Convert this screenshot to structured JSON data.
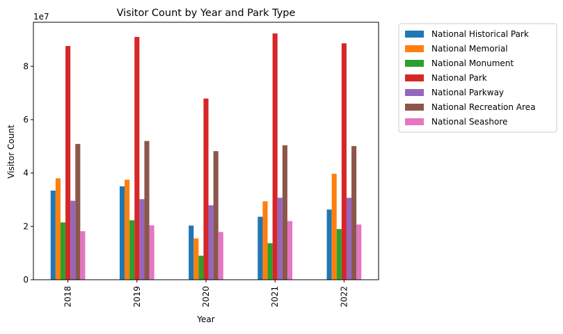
{
  "chart_data": {
    "type": "bar",
    "title": "Visitor Count by Year and Park Type",
    "xlabel": "Year",
    "ylabel": "Visitor Count",
    "y_offset_label": "1e7",
    "categories": [
      "2018",
      "2019",
      "2020",
      "2021",
      "2022"
    ],
    "ylim": [
      0,
      96500000
    ],
    "y_ticks": [
      0,
      20000000,
      40000000,
      60000000,
      80000000
    ],
    "y_tick_labels": [
      "0",
      "2",
      "4",
      "6",
      "8"
    ],
    "grid": false,
    "legend_position": "outside-top-right",
    "series": [
      {
        "name": "National Historical Park",
        "color": "#1f77b4",
        "values": [
          33400000,
          35000000,
          20300000,
          23600000,
          26300000
        ]
      },
      {
        "name": "National Memorial",
        "color": "#ff7f0e",
        "values": [
          38000000,
          37500000,
          15500000,
          29400000,
          39700000
        ]
      },
      {
        "name": "National Monument",
        "color": "#2ca02c",
        "values": [
          21500000,
          22300000,
          9000000,
          13700000,
          19000000
        ]
      },
      {
        "name": "National Park",
        "color": "#d62728",
        "values": [
          87600000,
          91000000,
          67900000,
          92300000,
          88600000
        ]
      },
      {
        "name": "National Parkway",
        "color": "#9467bd",
        "values": [
          29600000,
          30200000,
          27900000,
          30700000,
          30700000
        ]
      },
      {
        "name": "National Recreation Area",
        "color": "#8c564b",
        "values": [
          50900000,
          52000000,
          48200000,
          50400000,
          50100000
        ]
      },
      {
        "name": "National Seashore",
        "color": "#e377c2",
        "values": [
          18200000,
          20400000,
          17900000,
          22000000,
          20700000
        ]
      }
    ]
  }
}
